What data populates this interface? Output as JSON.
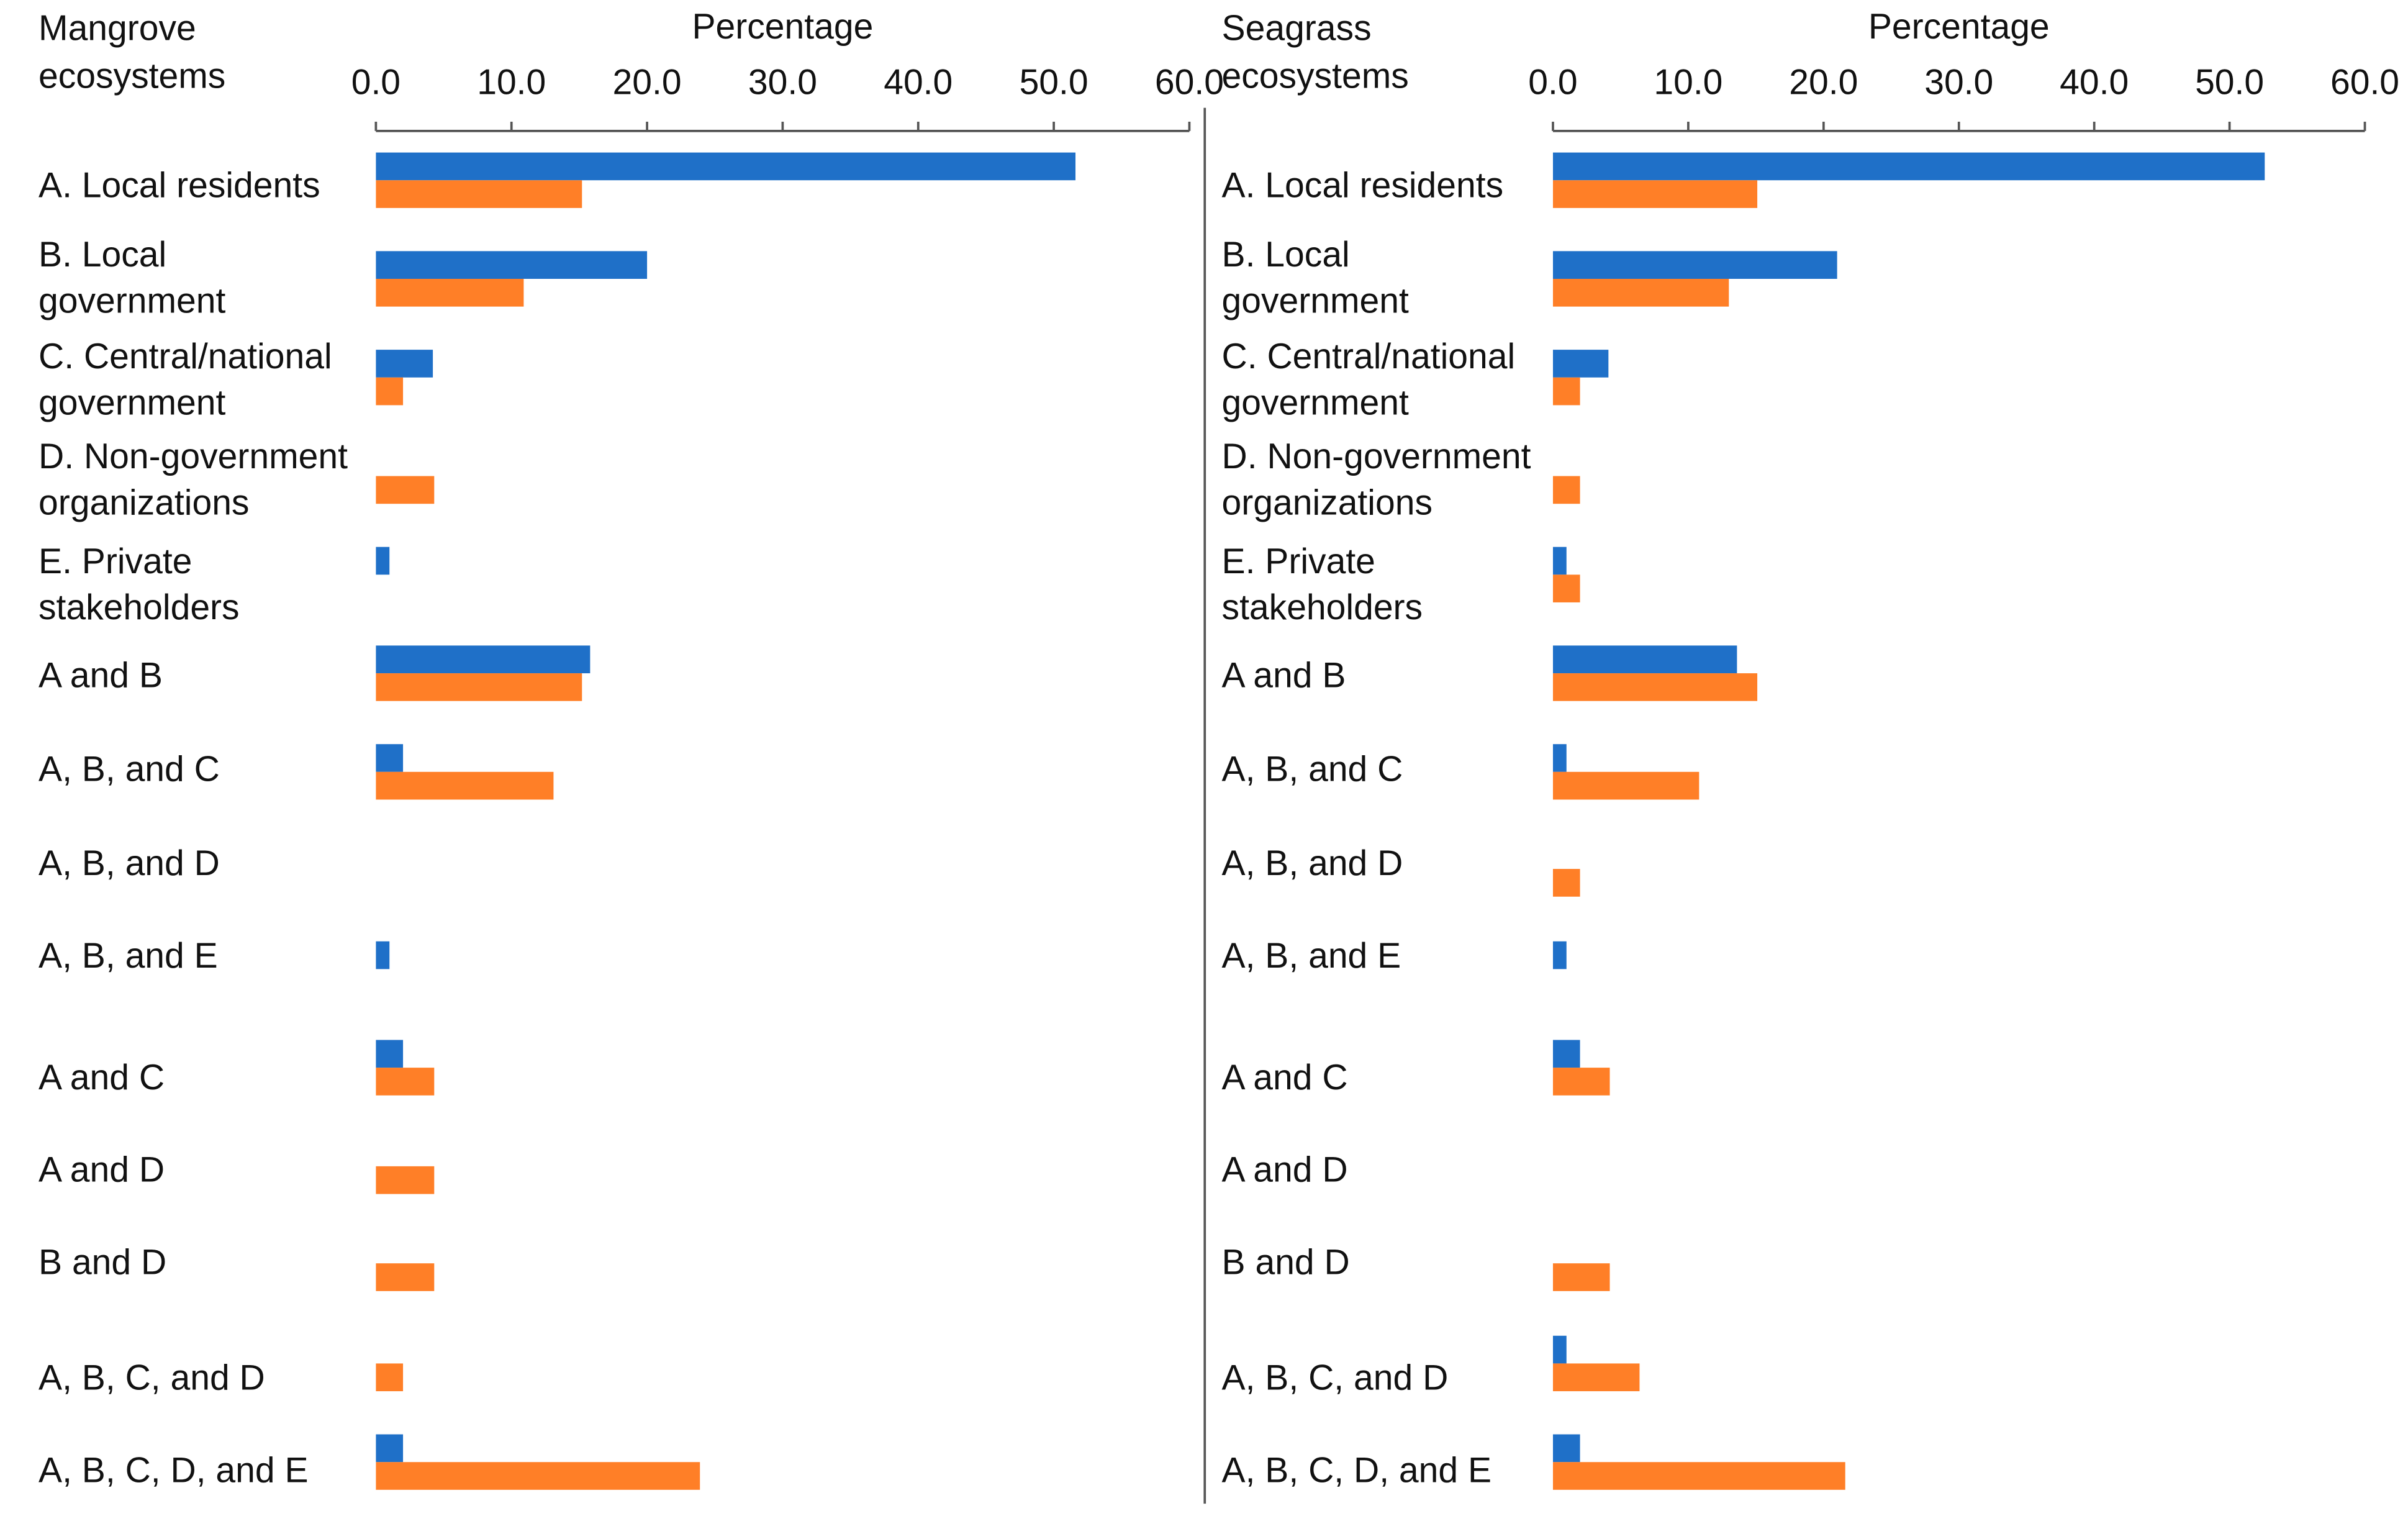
{
  "chart_data": [
    {
      "type": "bar",
      "orientation": "horizontal",
      "title": "Mangrove\necosystems",
      "x_label": "Percentage",
      "categories": [
        "A. Local residents",
        "B. Local\ngovernment",
        "C. Central/national\ngovernment",
        "D. Non-government\norganizations",
        "E. Private\nstakeholders",
        "A and B",
        "A, B, and C",
        "A, B, and D",
        "A, B, and E",
        "A and C",
        "A and D",
        "B and D",
        "A, B, C, and D",
        "A, B, C, D, and E"
      ],
      "series": [
        {
          "color": "#1f70c8",
          "values": [
            51.6,
            20.0,
            4.2,
            0,
            1.0,
            15.8,
            2.0,
            0,
            1.0,
            2.0,
            0,
            0,
            0,
            2.0
          ]
        },
        {
          "color": "#ff7f27",
          "values": [
            15.2,
            10.9,
            2.0,
            4.3,
            0,
            15.2,
            13.1,
            0,
            0,
            4.3,
            4.3,
            4.3,
            2.0,
            23.9
          ]
        }
      ],
      "xlim": [
        0,
        60
      ],
      "xticks": [
        {
          "value": 0,
          "label": "0.0"
        },
        {
          "value": 10,
          "label": "10.0"
        },
        {
          "value": 20,
          "label": "20.0"
        },
        {
          "value": 30,
          "label": "30.0"
        },
        {
          "value": 40,
          "label": "40.0"
        },
        {
          "value": 50,
          "label": "50.0"
        },
        {
          "value": 60,
          "label": "60.0"
        }
      ]
    },
    {
      "type": "bar",
      "orientation": "horizontal",
      "title": "Seagrass\necosystems",
      "x_label": "Percentage",
      "categories": [
        "A. Local residents",
        "B. Local\ngovernment",
        "C. Central/national\ngovernment",
        "D. Non-government\norganizations",
        "E. Private\nstakeholders",
        "A and B",
        "A, B, and C",
        "A, B, and D",
        "A, B, and E",
        "A and C",
        "A and D",
        "B and D",
        "A, B, C, and D",
        "A, B, C, D, and E"
      ],
      "series": [
        {
          "color": "#1f70c8",
          "values": [
            52.6,
            21.0,
            4.1,
            0,
            1.0,
            13.6,
            1.0,
            0,
            1.0,
            2.0,
            0,
            0,
            1.0,
            2.0
          ]
        },
        {
          "color": "#ff7f27",
          "values": [
            15.1,
            13.0,
            2.0,
            2.0,
            2.0,
            15.1,
            10.8,
            2.0,
            0,
            4.2,
            0,
            4.2,
            6.4,
            21.6
          ]
        }
      ],
      "xlim": [
        0,
        60
      ],
      "xticks": [
        {
          "value": 0,
          "label": "0.0"
        },
        {
          "value": 10,
          "label": "10.0"
        },
        {
          "value": 20,
          "label": "20.0"
        },
        {
          "value": 30,
          "label": "30.0"
        },
        {
          "value": 40,
          "label": "40.0"
        },
        {
          "value": 50,
          "label": "50.0"
        },
        {
          "value": 60,
          "label": "60.0"
        }
      ]
    }
  ]
}
